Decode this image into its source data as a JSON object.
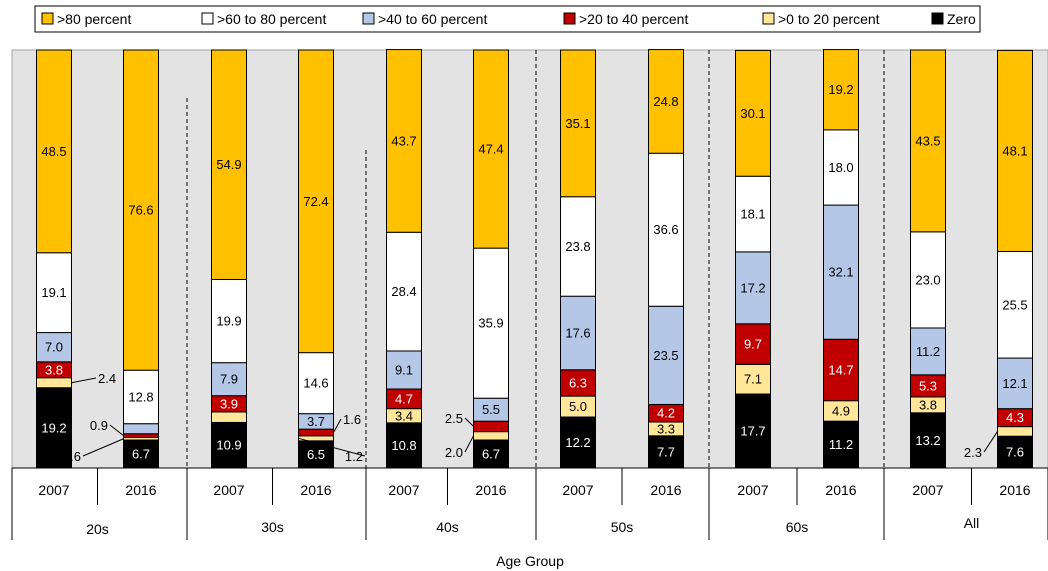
{
  "chart_data": {
    "type": "stacked-bar",
    "xlabel": "Age Group",
    "ylim": [
      0,
      100
    ],
    "grid": false,
    "legend_position": "top",
    "groups": [
      "20s",
      "30s",
      "40s",
      "50s",
      "60s",
      "All"
    ],
    "bar_labels": [
      "2007",
      "2016"
    ],
    "series": [
      {
        "name": "Zero",
        "color": "#000000",
        "values": [
          19.2,
          6.7,
          10.9,
          6.5,
          10.8,
          6.7,
          12.2,
          7.7,
          17.7,
          11.2,
          13.2,
          7.6
        ]
      },
      {
        "name": ">0 to 20 percent",
        "color": "#FFE699",
        "values": [
          2.4,
          0.6,
          2.5,
          1.2,
          3.4,
          2.0,
          5.0,
          3.3,
          7.1,
          4.9,
          3.8,
          2.3
        ]
      },
      {
        "name": ">20 to 40 percent",
        "color": "#C00000",
        "values": [
          3.8,
          0.9,
          3.9,
          1.6,
          4.7,
          2.5,
          6.3,
          4.2,
          9.7,
          14.7,
          5.3,
          4.3
        ]
      },
      {
        "name": ">40 to 60 percent",
        "color": "#B4C7E7",
        "values": [
          7.0,
          2.4,
          7.9,
          3.7,
          9.1,
          5.5,
          17.6,
          23.5,
          17.2,
          32.1,
          11.2,
          12.1
        ]
      },
      {
        "name": ">60 to 80 percent",
        "color": "#FFFFFF",
        "values": [
          19.1,
          12.8,
          19.9,
          14.6,
          28.4,
          35.9,
          23.8,
          36.6,
          18.1,
          18.0,
          23.0,
          25.5
        ]
      },
      {
        "name": ">80 percent",
        "color": "#FFC000",
        "values": [
          48.5,
          76.6,
          54.9,
          72.4,
          43.7,
          47.4,
          35.1,
          24.8,
          30.1,
          19.2,
          43.5,
          48.1
        ]
      }
    ],
    "legend_order": [
      ">80 percent",
      ">60 to 80 percent",
      ">40 to 60 percent",
      ">20 to 40 percent",
      ">0 to 20 percent",
      "Zero"
    ]
  }
}
